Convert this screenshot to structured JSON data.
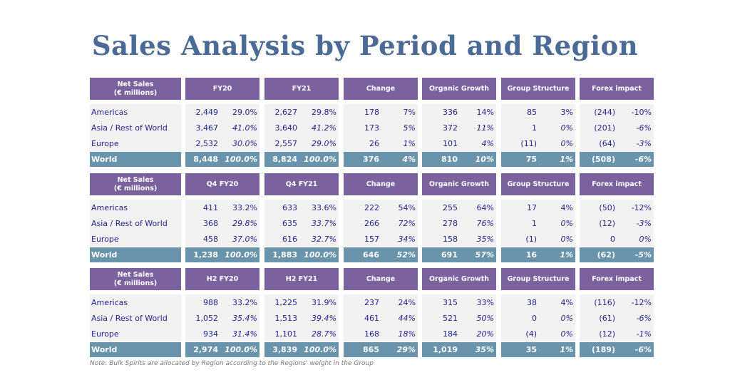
{
  "title": "Sales Analysis by Period and Region",
  "note": "Note: Bulk Spirits are allocated by Region according to the Regions' weight in the Group",
  "colors": {
    "header": "#7b619e",
    "world": "#6a94ab",
    "title": "#4b6a96",
    "text": "#1f1f8a"
  },
  "sections": [
    {
      "headers": [
        "Net Sales\n(€ millions)",
        "FY20",
        "FY21",
        "Change",
        "Organic Growth",
        "Group Structure",
        "Forex impact"
      ],
      "rows": [
        {
          "label": "Americas",
          "values": [
            "2,449",
            "29.0%",
            "2,627",
            "29.8%",
            "178",
            "7%",
            "336",
            "14%",
            "85",
            "3%",
            "(244)",
            "-10%"
          ]
        },
        {
          "label": "Asia / Rest of World",
          "values": [
            "3,467",
            "41.0%",
            "3,640",
            "41.2%",
            "173",
            "5%",
            "372",
            "11%",
            "1",
            "0%",
            "(201)",
            "-6%"
          ]
        },
        {
          "label": "Europe",
          "values": [
            "2,532",
            "30.0%",
            "2,557",
            "29.0%",
            "26",
            "1%",
            "101",
            "4%",
            "(11)",
            "0%",
            "(64)",
            "-3%"
          ]
        },
        {
          "label": "World",
          "values": [
            "8,448",
            "100.0%",
            "8,824",
            "100.0%",
            "376",
            "4%",
            "810",
            "10%",
            "75",
            "1%",
            "(508)",
            "-6%"
          ]
        }
      ]
    },
    {
      "headers": [
        "Net Sales\n(€ millions)",
        "Q4 FY20",
        "Q4 FY21",
        "Change",
        "Organic Growth",
        "Group Structure",
        "Forex impact"
      ],
      "rows": [
        {
          "label": "Americas",
          "values": [
            "411",
            "33.2%",
            "633",
            "33.6%",
            "222",
            "54%",
            "255",
            "64%",
            "17",
            "4%",
            "(50)",
            "-12%"
          ]
        },
        {
          "label": "Asia / Rest of World",
          "values": [
            "368",
            "29.8%",
            "635",
            "33.7%",
            "266",
            "72%",
            "278",
            "76%",
            "1",
            "0%",
            "(12)",
            "-3%"
          ]
        },
        {
          "label": "Europe",
          "values": [
            "458",
            "37.0%",
            "616",
            "32.7%",
            "157",
            "34%",
            "158",
            "35%",
            "(1)",
            "0%",
            "0",
            "0%"
          ]
        },
        {
          "label": "World",
          "values": [
            "1,238",
            "100.0%",
            "1,883",
            "100.0%",
            "646",
            "52%",
            "691",
            "57%",
            "16",
            "1%",
            "(62)",
            "-5%"
          ]
        }
      ]
    },
    {
      "headers": [
        "Net Sales\n(€ millions)",
        "H2 FY20",
        "H2 FY21",
        "Change",
        "Organic Growth",
        "Group Structure",
        "Forex impact"
      ],
      "rows": [
        {
          "label": "Americas",
          "values": [
            "988",
            "33.2%",
            "1,225",
            "31.9%",
            "237",
            "24%",
            "315",
            "33%",
            "38",
            "4%",
            "(116)",
            "-12%"
          ]
        },
        {
          "label": "Asia / Rest of World",
          "values": [
            "1,052",
            "35.4%",
            "1,513",
            "39.4%",
            "461",
            "44%",
            "521",
            "50%",
            "0",
            "0%",
            "(61)",
            "-6%"
          ]
        },
        {
          "label": "Europe",
          "values": [
            "934",
            "31.4%",
            "1,101",
            "28.7%",
            "168",
            "18%",
            "184",
            "20%",
            "(4)",
            "0%",
            "(12)",
            "-1%"
          ]
        },
        {
          "label": "World",
          "values": [
            "2,974",
            "100.0%",
            "3,839",
            "100.0%",
            "865",
            "29%",
            "1,019",
            "35%",
            "35",
            "1%",
            "(189)",
            "-6%"
          ]
        }
      ]
    }
  ]
}
